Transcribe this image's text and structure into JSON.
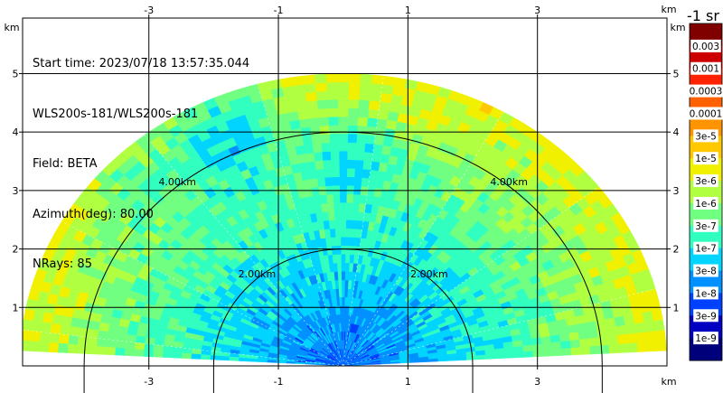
{
  "info": {
    "start_time": "Start time: 2023/07/18 13:57:35.044",
    "instrument": "WLS200s-181/WLS200s-181",
    "field": "Field: BETA",
    "azimuth": "Azimuth(deg): 80.00",
    "nrays": "NRays: 85"
  },
  "chart_data": {
    "type": "heatmap",
    "title": "",
    "subtitle": "",
    "xlabel": "km",
    "ylabel": "km",
    "xlim": [
      -4.95,
      5.0
    ],
    "ylim": [
      0,
      5.95
    ],
    "x_ticks": [
      "-3",
      "-1",
      "1",
      "3"
    ],
    "y_ticks": [
      "1",
      "2",
      "3",
      "4",
      "5"
    ],
    "unit_label_top": "km",
    "unit_label_bottom": "km",
    "unit_label_left": "km",
    "unit_label_right": "km",
    "grid": true,
    "range_rings": [
      {
        "radius_km": 2.0,
        "label": "2.00km"
      },
      {
        "radius_km": 4.0,
        "label": "4.00km"
      }
    ],
    "scan": {
      "type": "RHI",
      "elevation_min_deg": 3,
      "elevation_max_deg": 177,
      "max_range_km": 5.0,
      "n_rays": 85
    },
    "colorbar": {
      "title": "-1 sr",
      "labels": [
        "0.003",
        "0.001",
        "0.0003",
        "0.0001",
        "3e-5",
        "1e-5",
        "3e-6",
        "1e-6",
        "3e-7",
        "1e-7",
        "3e-8",
        "1e-8",
        "3e-9",
        "1e-9"
      ],
      "colors": [
        "#800000",
        "#cc0000",
        "#ff2200",
        "#ff6000",
        "#ff9400",
        "#ffc800",
        "#f0f000",
        "#b0ff40",
        "#70ff80",
        "#30ffc0",
        "#00d4ff",
        "#0090ff",
        "#0040ff",
        "#0000c0",
        "#00007a"
      ]
    }
  }
}
